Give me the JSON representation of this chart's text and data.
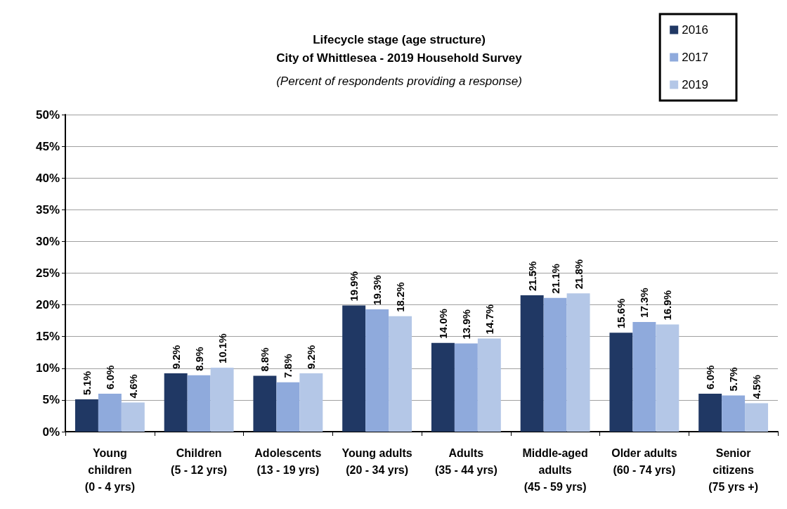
{
  "chart_data": {
    "type": "bar",
    "title": "Lifecycle stage (age structure)\nCity of Whittlesea - 2019 Household Survey",
    "subtitle": "(Percent of respondents providing a response)",
    "categories": [
      "Young\nchildren\n(0 - 4 yrs)",
      "Children\n(5 - 12 yrs)",
      "Adolescents\n(13 - 19 yrs)",
      "Young adults\n(20 - 34 yrs)",
      "Adults\n(35 - 44 yrs)",
      "Middle-aged\nadults\n(45 - 59 yrs)",
      "Older adults\n(60 - 74 yrs)",
      "Senior\ncitizens\n(75 yrs +)"
    ],
    "series": [
      {
        "name": "2016",
        "color": "#203864",
        "values": [
          5.1,
          9.2,
          8.8,
          19.9,
          14.0,
          21.5,
          15.6,
          6.0
        ],
        "value_labels": [
          "5.1%",
          "9.2%",
          "8.8%",
          "19.9%",
          "14.0%",
          "21.5%",
          "15.6%",
          "6.0%"
        ]
      },
      {
        "name": "2017",
        "color": "#8faadc",
        "values": [
          6.0,
          8.9,
          7.8,
          19.3,
          13.9,
          21.1,
          17.3,
          5.7
        ],
        "value_labels": [
          "6.0%",
          "8.9%",
          "7.8%",
          "19.3%",
          "13.9%",
          "21.1%",
          "17.3%",
          "5.7%"
        ]
      },
      {
        "name": "2019",
        "color": "#b4c7e7",
        "values": [
          4.6,
          10.1,
          9.2,
          18.2,
          14.7,
          21.8,
          16.9,
          4.5
        ],
        "value_labels": [
          "4.6%",
          "10.1%",
          "9.2%",
          "18.2%",
          "14.7%",
          "21.8%",
          "16.9%",
          "4.5%"
        ]
      }
    ],
    "ylim": [
      0,
      50
    ],
    "yticks": [
      {
        "value": 0,
        "label": "0%"
      },
      {
        "value": 5,
        "label": "5%"
      },
      {
        "value": 10,
        "label": "10%"
      },
      {
        "value": 15,
        "label": "15%"
      },
      {
        "value": 20,
        "label": "20%"
      },
      {
        "value": 25,
        "label": "25%"
      },
      {
        "value": 30,
        "label": "30%"
      },
      {
        "value": 35,
        "label": "35%"
      },
      {
        "value": 40,
        "label": "40%"
      },
      {
        "value": 45,
        "label": "45%"
      },
      {
        "value": 50,
        "label": "50%"
      }
    ],
    "grid": "y",
    "legend": "top right"
  }
}
